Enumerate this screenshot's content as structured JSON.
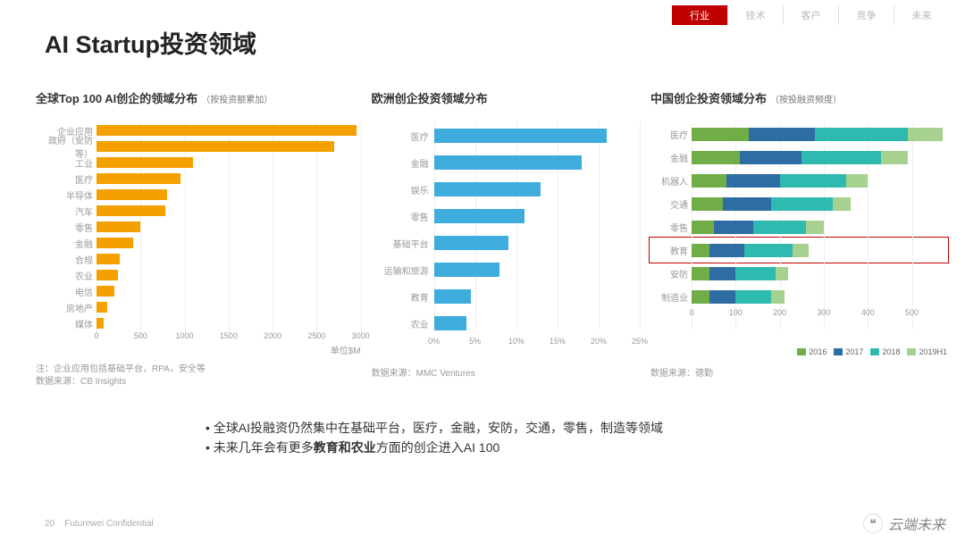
{
  "nav": {
    "tabs": [
      "行业",
      "技术",
      "客户",
      "竞争",
      "未来"
    ],
    "active_index": 0,
    "active_bg": "#c00000",
    "inactive_color": "#b8b8b8"
  },
  "title": "AI Startup投资领域",
  "chart1": {
    "type": "bar-horizontal",
    "title": "全球Top 100 AI创企的领域分布",
    "subtitle": "（按投资额累加）",
    "categories": [
      "企业应用",
      "政府（安防等）",
      "工业",
      "医疗",
      "半导体",
      "汽车",
      "零售",
      "金融",
      "合规",
      "农业",
      "电信",
      "房地产",
      "媒体"
    ],
    "values": [
      2950,
      2700,
      1100,
      950,
      800,
      780,
      500,
      420,
      260,
      240,
      200,
      120,
      80
    ],
    "xmax": 3000,
    "xticks": [
      0,
      500,
      1000,
      1500,
      2000,
      2500,
      3000
    ],
    "bar_color": "#f4a000",
    "xlabel": "单位$M",
    "note1": "注：企业应用包括基础平台，RPA，安全等",
    "note2": "数据来源：CB Insights"
  },
  "chart2": {
    "type": "bar-horizontal",
    "title": "欧洲创企投资领域分布",
    "subtitle": "",
    "categories": [
      "医疗",
      "金融",
      "娱乐",
      "零售",
      "基础平台",
      "运输和旅游",
      "教育",
      "农业"
    ],
    "values": [
      21,
      18,
      13,
      11,
      9,
      8,
      4.5,
      4
    ],
    "xmax": 25,
    "xticks": [
      0,
      5,
      10,
      15,
      20,
      25
    ],
    "xtick_labels": [
      "0%",
      "5%",
      "10%",
      "15%",
      "20%",
      "25%"
    ],
    "bar_color": "#3eacdd",
    "source": "数据来源：MMC Ventures"
  },
  "chart3": {
    "type": "stacked-bar-horizontal",
    "title": "中国创企投资领域分布",
    "subtitle": "（按投融资频度）",
    "categories": [
      "医疗",
      "金融",
      "机器人",
      "交通",
      "零售",
      "教育",
      "安防",
      "制造业"
    ],
    "series_names": [
      "2016",
      "2017",
      "2018",
      "2019H1"
    ],
    "series_colors": [
      "#70ad47",
      "#2e6ca4",
      "#2fbab0",
      "#a6d18f"
    ],
    "values": [
      [
        130,
        150,
        210,
        80
      ],
      [
        110,
        140,
        180,
        60
      ],
      [
        80,
        120,
        150,
        50
      ],
      [
        70,
        110,
        140,
        40
      ],
      [
        50,
        90,
        120,
        40
      ],
      [
        40,
        80,
        110,
        35
      ],
      [
        40,
        60,
        90,
        30
      ],
      [
        40,
        60,
        80,
        30
      ]
    ],
    "xmax": 580,
    "xticks": [
      0,
      100,
      200,
      300,
      400,
      500
    ],
    "highlight_index": 5,
    "highlight_color": "#c00000",
    "source": "数据来源：德勤"
  },
  "bullets": {
    "line1_a": "全球AI投融资仍然集中在基础平台，医疗，金融，安防，交通，零售，制造等领域",
    "line2_a": "未来几年会有更多",
    "line2_bold": "教育和农业",
    "line2_b": "方面的创企进入AI 100"
  },
  "footer": {
    "page": "20",
    "conf": "Futurewei Confidential"
  },
  "watermark": {
    "icon": "❝",
    "text": "云端未来"
  }
}
